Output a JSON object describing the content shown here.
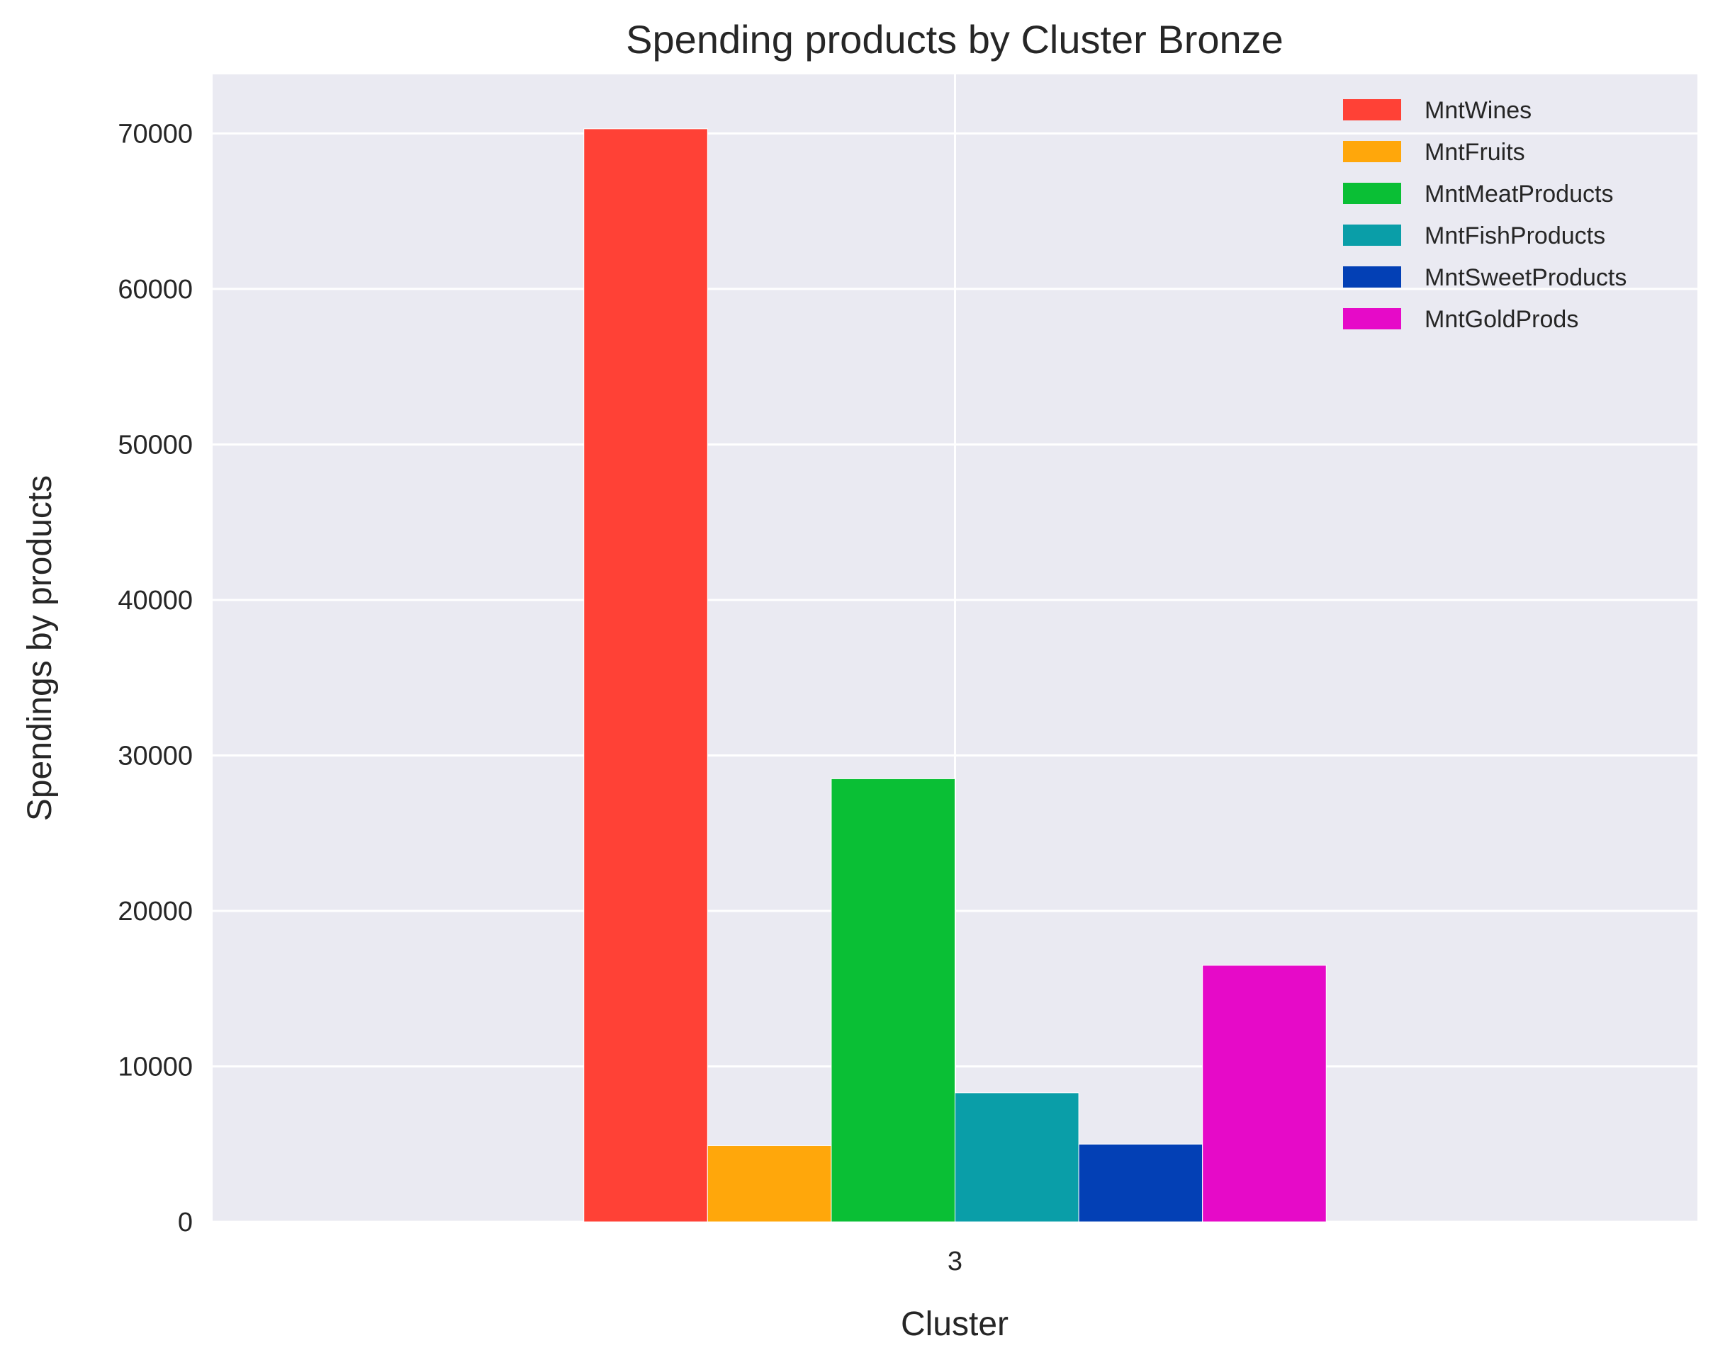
{
  "chart_data": {
    "type": "bar",
    "title": "Spending products by Cluster Bronze",
    "xlabel": "Cluster",
    "ylabel": "Spendings by products",
    "categories": [
      "3"
    ],
    "series": [
      {
        "name": "MntWines",
        "values": [
          70300
        ],
        "color": "#ff4136"
      },
      {
        "name": "MntFruits",
        "values": [
          4900
        ],
        "color": "#ffa70b"
      },
      {
        "name": "MntMeatProducts",
        "values": [
          28500
        ],
        "color": "#0abf35"
      },
      {
        "name": "MntFishProducts",
        "values": [
          8300
        ],
        "color": "#0a9ea8"
      },
      {
        "name": "MntSweetProducts",
        "values": [
          5000
        ],
        "color": "#0340b5"
      },
      {
        "name": "MntGoldProds",
        "values": [
          16500
        ],
        "color": "#e60ac8"
      }
    ],
    "ylim": [
      0,
      73800
    ],
    "yticks": [
      "0",
      "10000",
      "20000",
      "30000",
      "40000",
      "50000",
      "60000",
      "70000"
    ],
    "grid": true,
    "legend_position": "top-right",
    "background_color": "#eaeaf2",
    "grid_color": "#ffffff"
  }
}
